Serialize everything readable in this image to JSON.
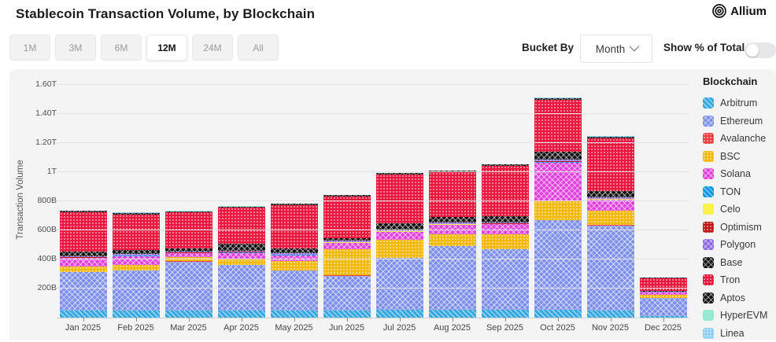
{
  "header": {
    "title": "Stablecoin Transaction Volume, by Blockchain",
    "brand": "Allium"
  },
  "controls": {
    "ranges": [
      {
        "label": "1M",
        "selected": false
      },
      {
        "label": "3M",
        "selected": false
      },
      {
        "label": "6M",
        "selected": false
      },
      {
        "label": "12M",
        "selected": true
      },
      {
        "label": "24M",
        "selected": false
      },
      {
        "label": "All",
        "selected": false
      }
    ],
    "bucket_by_label": "Bucket By",
    "bucket_value": "Month",
    "show_pct_label": "Show % of Total",
    "toggle_on": false
  },
  "chart_data": {
    "type": "bar",
    "stacked": true,
    "title": "Stablecoin Transaction Volume, by Blockchain",
    "ylabel": "Transaction Volume",
    "unit": "USD billions",
    "ylim_b": [
      0,
      1600
    ],
    "grid": true,
    "legend_position": "right",
    "legend_title": "Blockchain",
    "categories": [
      "Jan 2025",
      "Feb 2025",
      "Mar 2025",
      "Apr 2025",
      "May 2025",
      "Jun 2025",
      "Jul 2025",
      "Aug 2025",
      "Sep 2025",
      "Oct 2025",
      "Nov 2025",
      "Dec 2025"
    ],
    "y_ticks": [
      {
        "label": "200B",
        "value": 200
      },
      {
        "label": "400B",
        "value": 400
      },
      {
        "label": "600B",
        "value": 600
      },
      {
        "label": "800B",
        "value": 800
      },
      {
        "label": "1T",
        "value": 1000
      },
      {
        "label": "1.20T",
        "value": 1200
      },
      {
        "label": "1.40T",
        "value": 1400
      },
      {
        "label": "1.60T",
        "value": 1600
      }
    ],
    "series": [
      {
        "name": "Arbitrum",
        "color": "#36a9e1",
        "pattern": "diag",
        "values": [
          50,
          50,
          50,
          50,
          50,
          50,
          52,
          54,
          54,
          52,
          50,
          10
        ]
      },
      {
        "name": "Ethereum",
        "color": "#7d8fe8",
        "pattern": "cross",
        "values": [
          262,
          275,
          335,
          310,
          275,
          238,
          358,
          438,
          417,
          618,
          585,
          124
        ]
      },
      {
        "name": "Avalanche",
        "color": "#e84142",
        "pattern": "dots",
        "values": [
          2,
          2,
          2,
          2,
          2,
          2,
          2,
          2,
          2,
          3,
          3,
          1
        ]
      },
      {
        "name": "BSC",
        "color": "#f0b90b",
        "pattern": "dots",
        "values": [
          38,
          38,
          27,
          36,
          60,
          178,
          124,
          80,
          98,
          125,
          96,
          22
        ]
      },
      {
        "name": "Solana",
        "color": "#e040db",
        "pattern": "cross",
        "values": [
          58,
          58,
          27,
          48,
          42,
          46,
          54,
          64,
          70,
          268,
          75,
          16
        ]
      },
      {
        "name": "TON",
        "color": "#0798ea",
        "pattern": "diag",
        "values": [
          2,
          2,
          2,
          2,
          2,
          2,
          2,
          2,
          2,
          3,
          3,
          1
        ]
      },
      {
        "name": "Celo",
        "color": "#fbf24a",
        "pattern": "solid",
        "values": [
          1,
          1,
          1,
          1,
          1,
          1,
          1,
          1,
          1,
          2,
          2,
          1
        ]
      },
      {
        "name": "Optimism",
        "color": "#c01616",
        "pattern": "dots",
        "values": [
          3,
          3,
          3,
          3,
          3,
          3,
          3,
          3,
          3,
          4,
          4,
          1
        ]
      },
      {
        "name": "Polygon",
        "color": "#8a63e8",
        "pattern": "cross",
        "values": [
          8,
          8,
          8,
          10,
          8,
          8,
          8,
          8,
          8,
          10,
          10,
          2
        ]
      },
      {
        "name": "Base",
        "color": "#121212",
        "pattern": "cross",
        "values": [
          32,
          26,
          22,
          45,
          32,
          16,
          44,
          42,
          44,
          56,
          44,
          5
        ]
      },
      {
        "name": "Tron",
        "color": "#e8173d",
        "pattern": "dots",
        "values": [
          268,
          248,
          246,
          248,
          300,
          290,
          336,
          306,
          344,
          355,
          360,
          88
        ]
      },
      {
        "name": "Aptos",
        "color": "#141414",
        "pattern": "cross",
        "values": [
          11,
          10,
          10,
          10,
          10,
          10,
          10,
          10,
          10,
          12,
          12,
          3
        ]
      },
      {
        "name": "HyperEVM",
        "color": "#97ead2",
        "pattern": "solid",
        "values": [
          1,
          1,
          1,
          1,
          1,
          1,
          1,
          1,
          1,
          2,
          2,
          1
        ]
      },
      {
        "name": "Linea",
        "color": "#8ed0f8",
        "pattern": "dots",
        "values": [
          1,
          1,
          1,
          1,
          1,
          1,
          1,
          1,
          1,
          2,
          2,
          1
        ]
      }
    ]
  }
}
